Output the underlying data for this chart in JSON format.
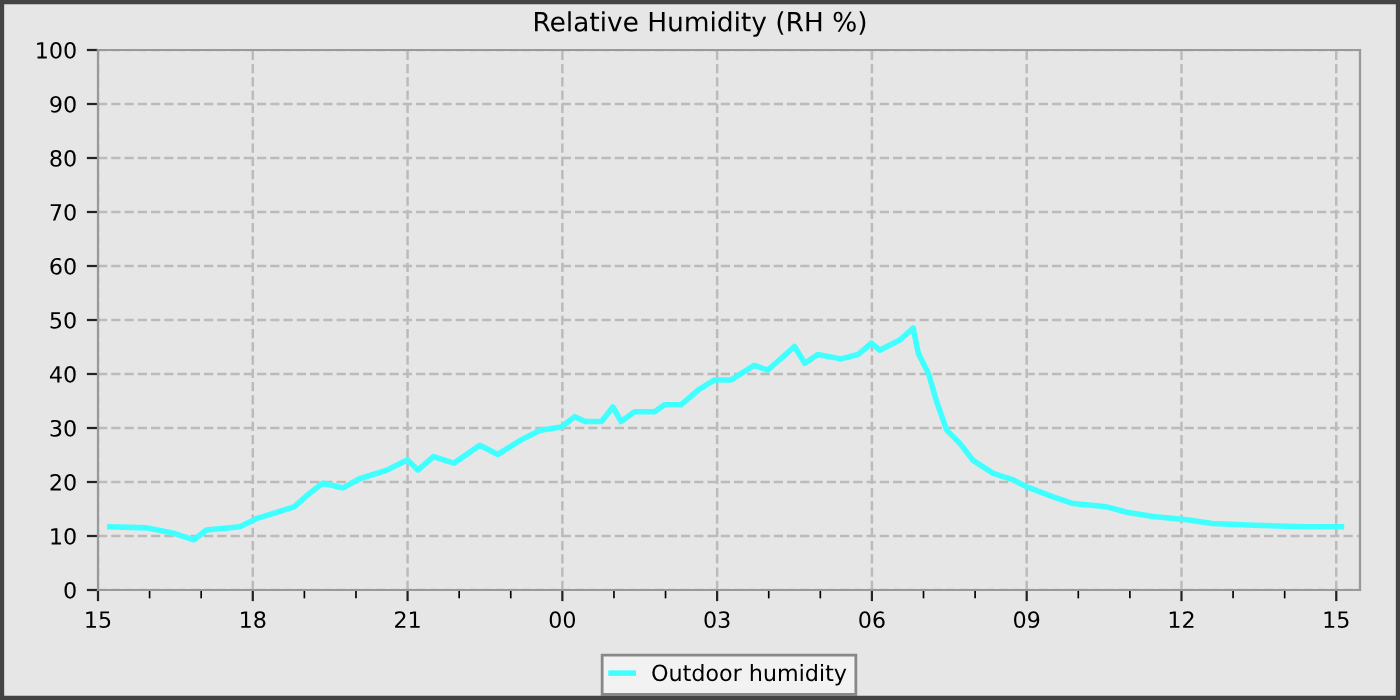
{
  "chart_data": {
    "type": "line",
    "title": "Relative Humidity (RH %)",
    "series": [
      {
        "name": "Outdoor humidity",
        "color": "#40ffff",
        "x": [
          15.23,
          15.95,
          16.47,
          16.86,
          17.1,
          17.75,
          18.07,
          18.4,
          18.8,
          19.1,
          19.36,
          19.75,
          20.07,
          20.6,
          21.0,
          21.2,
          21.5,
          21.9,
          22.4,
          22.75,
          23.2,
          23.57,
          23.98,
          24.24,
          24.44,
          24.76,
          24.98,
          25.14,
          25.4,
          25.79,
          25.98,
          26.3,
          26.63,
          26.95,
          27.27,
          27.72,
          27.98,
          28.5,
          28.7,
          28.95,
          29.4,
          29.73,
          29.99,
          30.15,
          30.54,
          30.8,
          30.9,
          31.1,
          31.25,
          31.45,
          31.7,
          31.96,
          32.35,
          32.74,
          33.0,
          33.5,
          33.9,
          34.55,
          34.94,
          35.45,
          36.1,
          36.6,
          37.4,
          38.4,
          39.1
        ],
        "values": [
          11.7,
          11.5,
          10.5,
          9.3,
          11.1,
          11.7,
          13.2,
          14.2,
          15.4,
          17.9,
          19.8,
          18.9,
          20.6,
          22.2,
          24.1,
          22.2,
          24.7,
          23.5,
          26.8,
          25.1,
          27.8,
          29.6,
          30.2,
          32.1,
          31.2,
          31.2,
          33.9,
          31.2,
          33,
          33,
          34.3,
          34.3,
          37,
          38.9,
          38.9,
          41.6,
          40.7,
          45.1,
          42,
          43.6,
          42.8,
          43.6,
          45.7,
          44.4,
          46.3,
          48.5,
          43.8,
          40,
          35,
          29.6,
          27.2,
          24,
          21.6,
          20.4,
          19.1,
          17.3,
          16,
          15.4,
          14.4,
          13.6,
          13,
          12.3,
          12,
          11.7,
          11.7
        ]
      }
    ],
    "xlim": [
      15,
      39.46
    ],
    "xticks": [
      {
        "value": 15,
        "label": "15"
      },
      {
        "value": 16,
        "label": null
      },
      {
        "value": 17,
        "label": null
      },
      {
        "value": 18,
        "label": "18"
      },
      {
        "value": 19,
        "label": null
      },
      {
        "value": 20,
        "label": null
      },
      {
        "value": 21,
        "label": "21"
      },
      {
        "value": 22,
        "label": null
      },
      {
        "value": 23,
        "label": null
      },
      {
        "value": 24,
        "label": "00"
      },
      {
        "value": 25,
        "label": null
      },
      {
        "value": 26,
        "label": null
      },
      {
        "value": 27,
        "label": "03"
      },
      {
        "value": 28,
        "label": null
      },
      {
        "value": 29,
        "label": null
      },
      {
        "value": 30,
        "label": "06"
      },
      {
        "value": 31,
        "label": null
      },
      {
        "value": 32,
        "label": null
      },
      {
        "value": 33,
        "label": "09"
      },
      {
        "value": 34,
        "label": null
      },
      {
        "value": 35,
        "label": null
      },
      {
        "value": 36,
        "label": "12"
      },
      {
        "value": 37,
        "label": null
      },
      {
        "value": 38,
        "label": null
      },
      {
        "value": 39,
        "label": "15"
      }
    ],
    "ylim": [
      0,
      100
    ],
    "yticks": [
      0,
      10,
      20,
      30,
      40,
      50,
      60,
      70,
      80,
      90,
      100
    ],
    "grid": true,
    "legend": "bottom",
    "line_style": "solid"
  }
}
